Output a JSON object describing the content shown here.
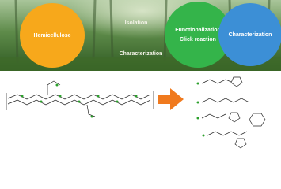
{
  "nodes": [
    {
      "label": "Hemicellulose"
    },
    {
      "label": "Isolation"
    },
    {
      "label": "Characterization"
    },
    {
      "label": "Functionalization"
    },
    {
      "label": "Click reaction"
    },
    {
      "label": "Characterization"
    }
  ]
}
